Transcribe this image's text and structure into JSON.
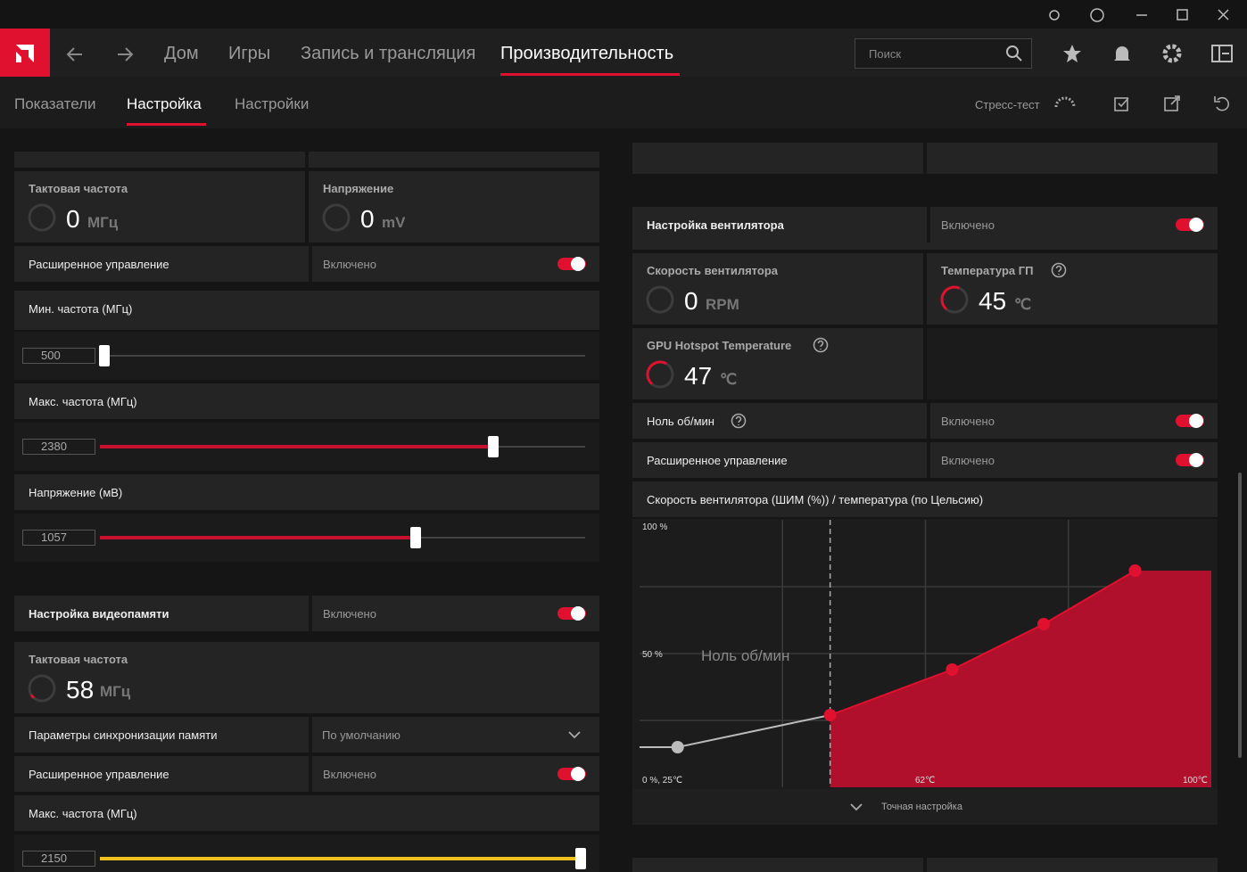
{
  "nav": {
    "items": [
      "Дом",
      "Игры",
      "Запись и трансляция",
      "Производительность"
    ],
    "search": "Поиск"
  },
  "subnav": {
    "items": [
      "Показатели",
      "Настройка",
      "Настройки"
    ],
    "stress_test": "Стресс-тест"
  },
  "gpu_tuning": {
    "clock": {
      "label": "Тактовая частота",
      "value": 0,
      "unit": "МГц"
    },
    "voltage": {
      "label": "Напряжение",
      "value": 0,
      "unit": "mV"
    },
    "advanced": {
      "label": "Расширенное управление",
      "state": "Включено"
    },
    "min_freq": {
      "label": "Мин. частота (МГц)",
      "value": 500
    },
    "max_freq": {
      "label": "Макс. частота (МГц)",
      "value": 2380
    },
    "voltage_mv": {
      "label": "Напряжение (мВ)",
      "value": 1057
    }
  },
  "vram_tuning": {
    "title": "Настройка видеопамяти",
    "state": "Включено",
    "clock": {
      "label": "Тактовая частота",
      "value": 58,
      "unit": "МГц"
    },
    "timing": {
      "label": "Параметры синхронизации памяти",
      "value": "По умолчанию"
    },
    "advanced": {
      "label": "Расширенное управление",
      "state": "Включено"
    },
    "max_freq": {
      "label": "Макс. частота (МГц)",
      "value": 2150
    }
  },
  "fan_tuning": {
    "title": "Настройка вентилятора",
    "state": "Включено",
    "speed": {
      "label": "Скорость вентилятора",
      "value": 0,
      "unit": "RPM"
    },
    "gpu_temp": {
      "label": "Температура ГП",
      "value": 45,
      "unit": "℃"
    },
    "hotspot": {
      "label": "GPU Hotspot Temperature",
      "value": 47,
      "unit": "℃"
    },
    "zero_rpm": {
      "label": "Ноль об/мин",
      "state": "Включено"
    },
    "advanced": {
      "label": "Расширенное управление",
      "state": "Включено"
    },
    "chart": {
      "title": "Скорость вентилятора (ШИМ (%)) / температура (по Цельсию)",
      "y_top_label": "100 %",
      "y_mid_label": "50 %",
      "origin_label": "0 %, 25℃",
      "x_mid_label": "62℃",
      "x_end_label": "100℃",
      "zero_rpm_label": "Ноль об/мин",
      "xlim": [
        25,
        100
      ],
      "ylim": [
        0,
        100
      ],
      "points": {
        "temp": [
          30,
          50,
          66,
          78,
          90
        ],
        "speed": [
          15,
          27,
          44,
          61,
          81
        ]
      }
    },
    "fine_tune": "Точная настройка"
  }
}
